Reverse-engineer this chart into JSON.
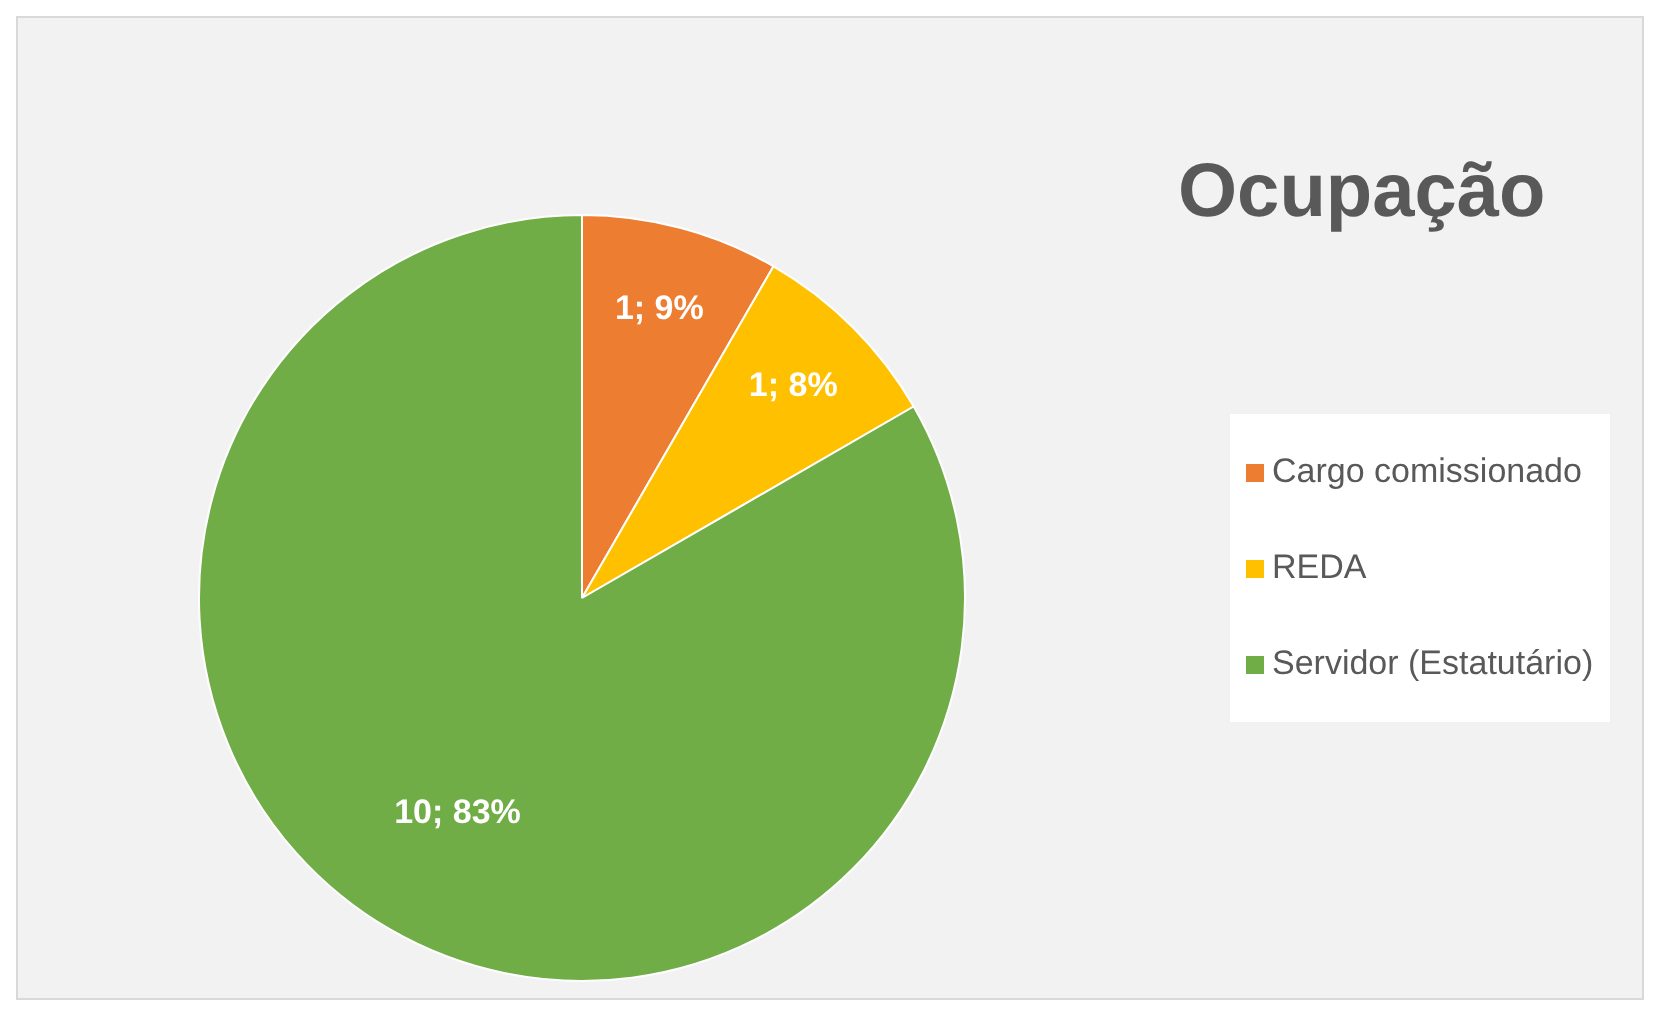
{
  "chart_data": {
    "type": "pie",
    "title": "Ocupação",
    "categories": [
      "Cargo comissionado",
      "REDA",
      "Servidor (Estatutário)"
    ],
    "values": [
      1,
      1,
      10
    ],
    "colors": [
      "#ed7d31",
      "#ffc000",
      "#70ad47"
    ],
    "value_labels": [
      "1; 9%",
      "1; 8%",
      "10; 83%"
    ],
    "legend": "right"
  }
}
